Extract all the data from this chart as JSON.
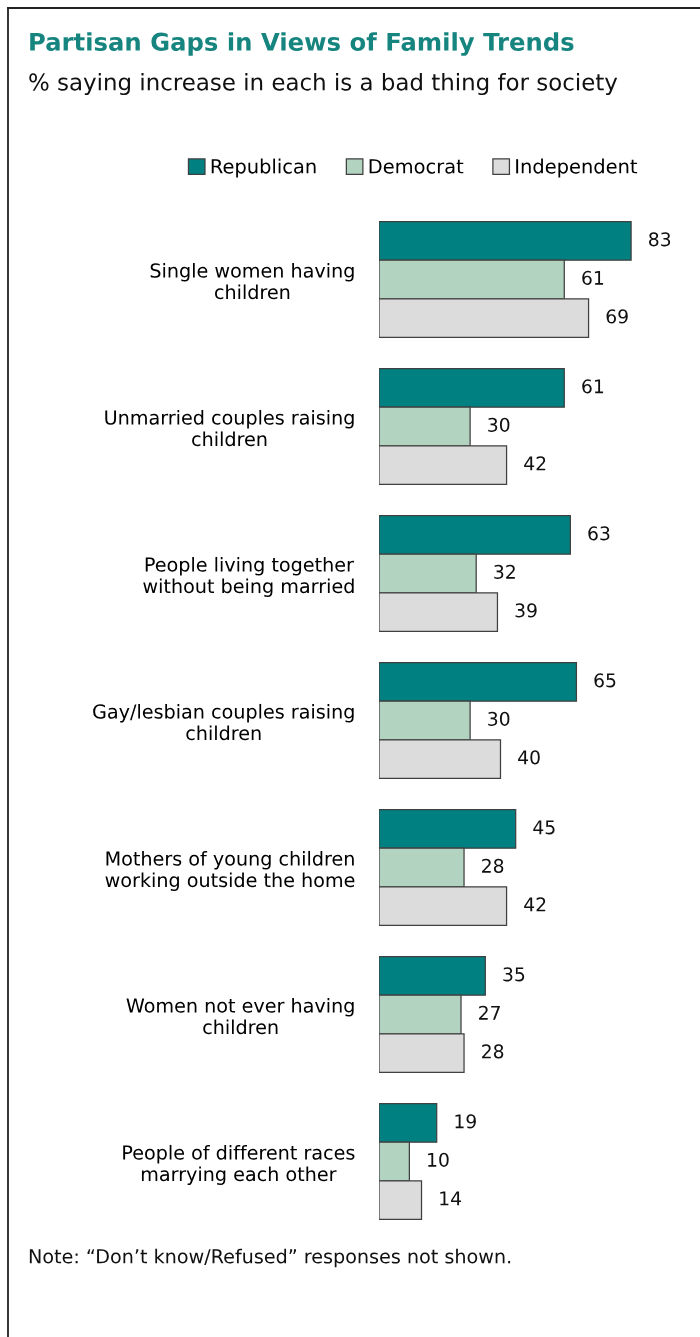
{
  "chart_data": {
    "type": "bar",
    "orientation": "horizontal",
    "title": "Partisan Gaps in Views of Family Trends",
    "subtitle": "% saying increase in each is a bad thing for society",
    "categories": [
      "Single women having\nchildren",
      "Unmarried couples raising\nchildren",
      "People living together\nwithout being married",
      "Gay/lesbian couples raising\nchildren",
      "Mothers of young children\nworking outside the home",
      "Women not ever having\nchildren",
      "People of different races\nmarrying each other"
    ],
    "series": [
      {
        "name": "Republican",
        "color": "#008080",
        "values": [
          83,
          61,
          63,
          65,
          45,
          35,
          19
        ]
      },
      {
        "name": "Democrat",
        "color": "#b3d3c1",
        "values": [
          61,
          30,
          32,
          30,
          28,
          27,
          10
        ]
      },
      {
        "name": "Independent",
        "color": "#dcdcdc",
        "values": [
          69,
          42,
          39,
          40,
          42,
          28,
          14
        ]
      }
    ],
    "data_labels": true,
    "legend": "top",
    "tick_labels": "y",
    "annotations": [
      "Note: “Don’t know/Refused” responses not shown."
    ]
  }
}
